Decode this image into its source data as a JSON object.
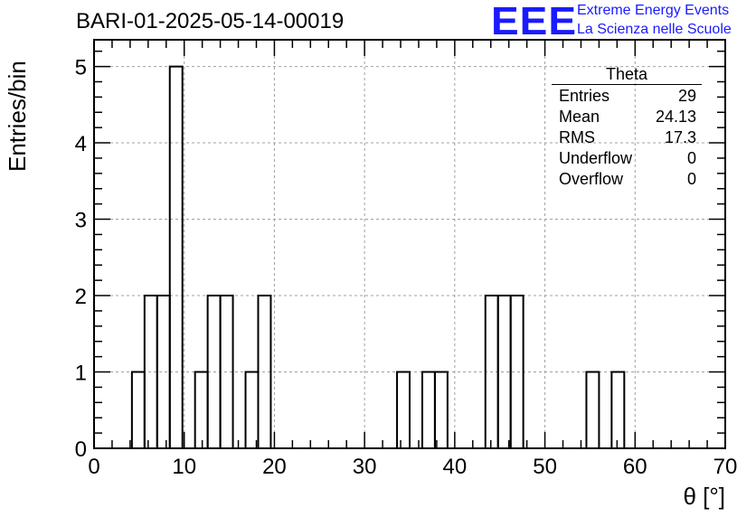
{
  "title": "BARI-01-2025-05-14-00019",
  "logo": {
    "mark": "EEE",
    "line1": "Extreme Energy Events",
    "line2": "La Scienza nelle Scuole",
    "color": "#1a1aff"
  },
  "stats_box": {
    "title": "Theta",
    "rows": [
      {
        "label": "Entries",
        "value": "29"
      },
      {
        "label": "Mean",
        "value": "24.13"
      },
      {
        "label": "RMS",
        "value": "17.3"
      },
      {
        "label": "Underflow",
        "value": "0"
      },
      {
        "label": "Overflow",
        "value": "0"
      }
    ]
  },
  "chart_data": {
    "type": "bar",
    "style": "step-histogram",
    "title": "BARI-01-2025-05-14-00019",
    "xlabel": "θ [°]",
    "ylabel": "Entries/bin",
    "xlim": [
      0,
      70
    ],
    "ylim": [
      0,
      5.35
    ],
    "xticks": [
      0,
      10,
      20,
      30,
      40,
      50,
      60,
      70
    ],
    "yticks": [
      0,
      1,
      2,
      3,
      4,
      5
    ],
    "grid": true,
    "bin_width": 1.4,
    "bins": [
      {
        "x0": 4.2,
        "x1": 5.6,
        "count": 1
      },
      {
        "x0": 5.6,
        "x1": 7.0,
        "count": 2
      },
      {
        "x0": 7.0,
        "x1": 8.4,
        "count": 2
      },
      {
        "x0": 8.4,
        "x1": 9.8,
        "count": 5
      },
      {
        "x0": 11.2,
        "x1": 12.6,
        "count": 1
      },
      {
        "x0": 12.6,
        "x1": 14.0,
        "count": 2
      },
      {
        "x0": 14.0,
        "x1": 15.4,
        "count": 2
      },
      {
        "x0": 16.8,
        "x1": 18.2,
        "count": 1
      },
      {
        "x0": 18.2,
        "x1": 19.6,
        "count": 2
      },
      {
        "x0": 33.6,
        "x1": 35.0,
        "count": 1
      },
      {
        "x0": 36.4,
        "x1": 37.8,
        "count": 1
      },
      {
        "x0": 37.8,
        "x1": 39.2,
        "count": 1
      },
      {
        "x0": 43.4,
        "x1": 44.8,
        "count": 2
      },
      {
        "x0": 44.8,
        "x1": 46.2,
        "count": 2
      },
      {
        "x0": 46.2,
        "x1": 47.6,
        "count": 2
      },
      {
        "x0": 54.6,
        "x1": 56.0,
        "count": 1
      },
      {
        "x0": 57.4,
        "x1": 58.8,
        "count": 1
      }
    ]
  }
}
